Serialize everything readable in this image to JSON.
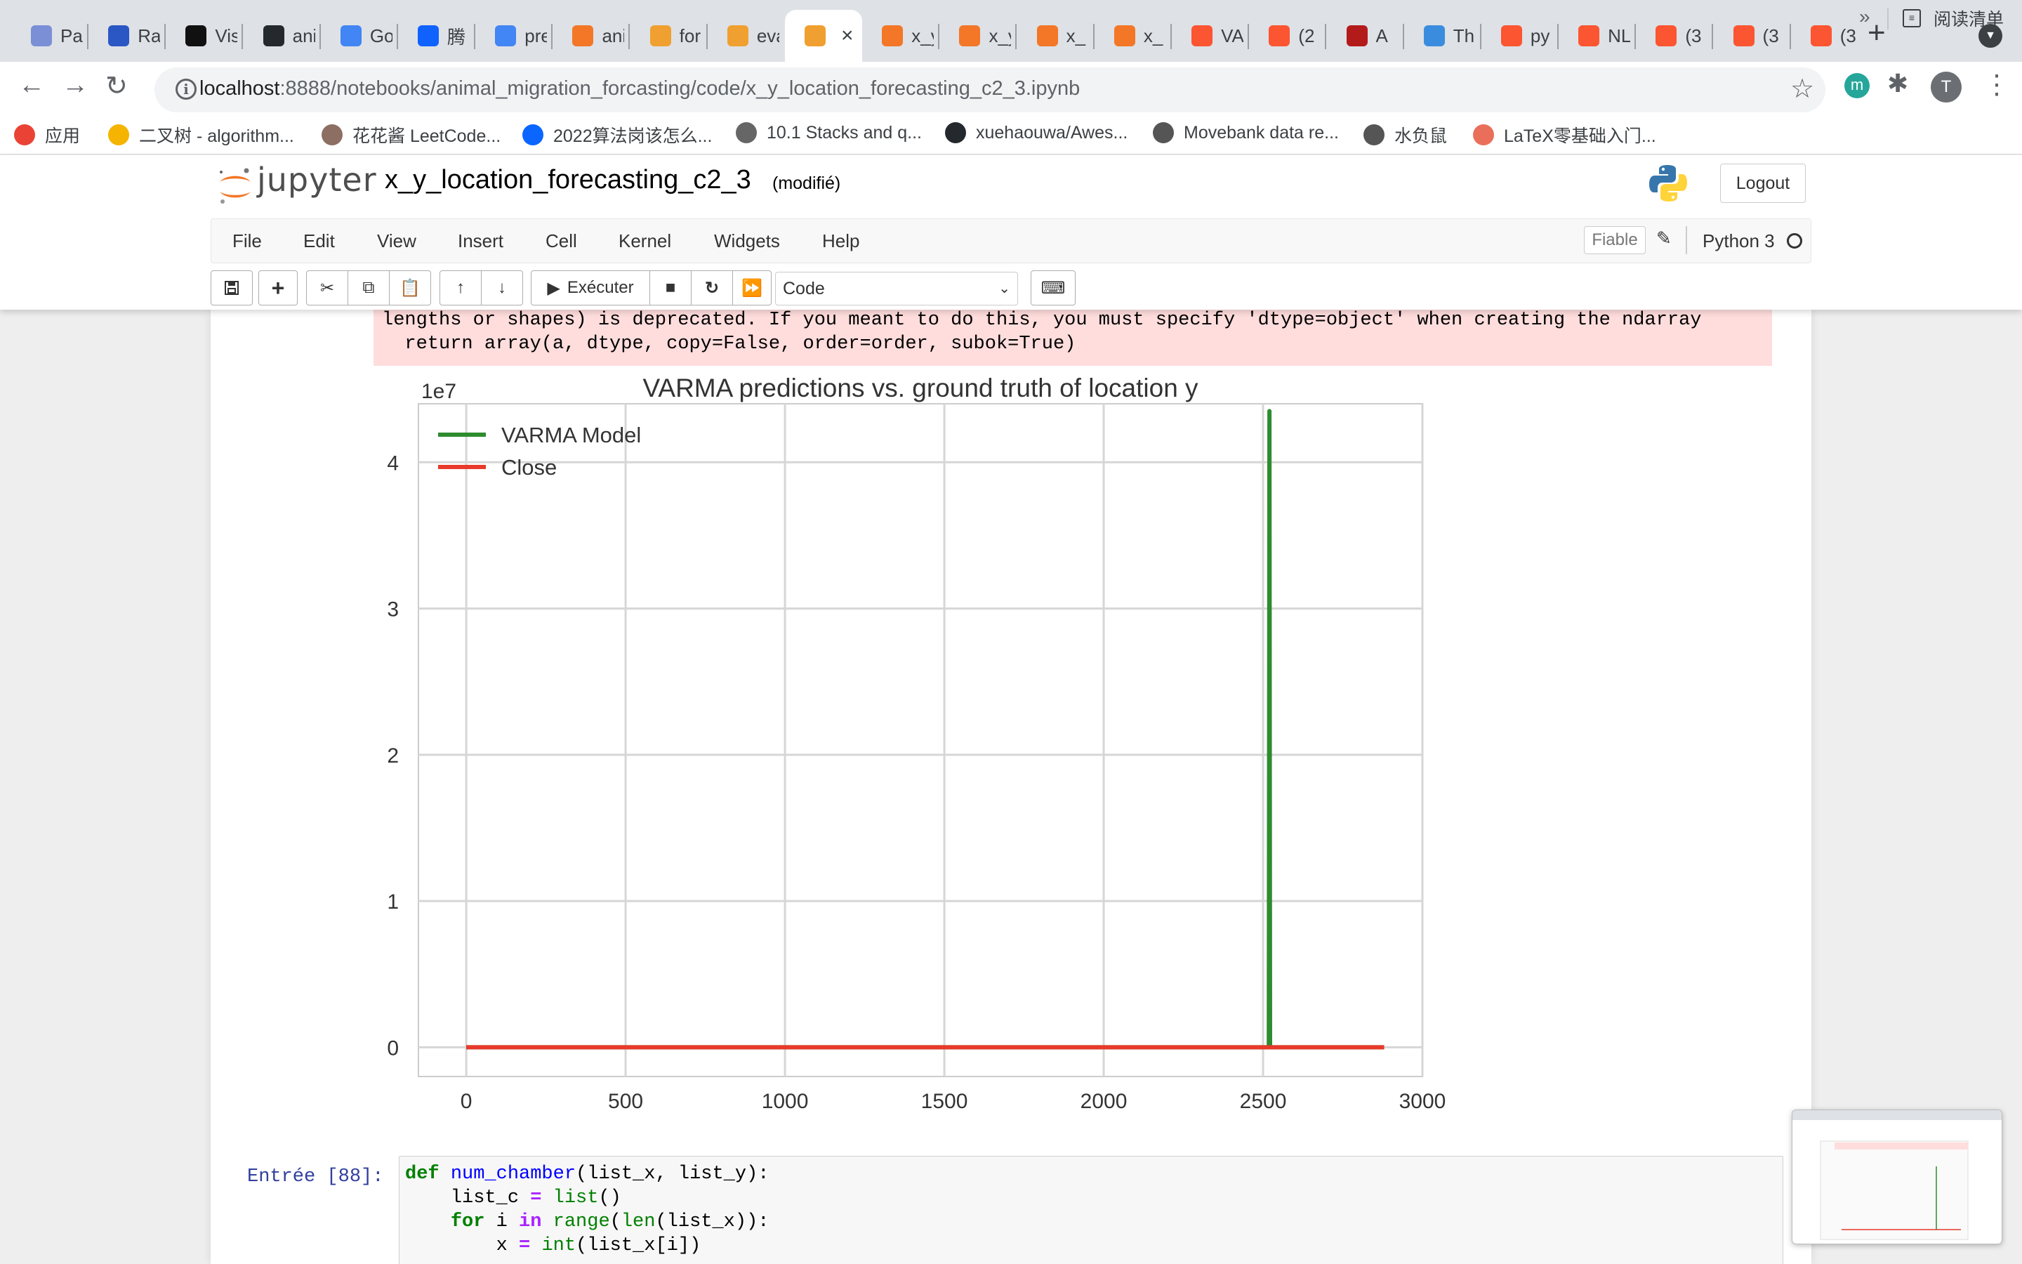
{
  "browser": {
    "tabs": [
      {
        "label": "Pa",
        "icon": "paper-icon",
        "color": "#7b8fd6"
      },
      {
        "label": "Ra",
        "icon": "nasa-icon",
        "color": "#2b57c5"
      },
      {
        "label": "Vis",
        "icon": "vis-icon",
        "color": "#111111"
      },
      {
        "label": "ani",
        "icon": "github-icon",
        "color": "#24292e"
      },
      {
        "label": "Go",
        "icon": "translate-icon",
        "color": "#4285f4"
      },
      {
        "label": "腾",
        "icon": "tencent-icon",
        "color": "#0f62fe"
      },
      {
        "label": "pre",
        "icon": "docs-icon",
        "color": "#4285f4"
      },
      {
        "label": "ani",
        "icon": "jupyter-icon",
        "color": "#f37726"
      },
      {
        "label": "for",
        "icon": "book-icon",
        "color": "#f0a030"
      },
      {
        "label": "eva",
        "icon": "book-icon",
        "color": "#f0a030"
      },
      {
        "label": "",
        "icon": "book-icon",
        "color": "#f0a030"
      },
      {
        "label": "x_y",
        "icon": "hourglass-icon",
        "color": "#f37726"
      },
      {
        "label": "x_y",
        "icon": "hourglass-icon",
        "color": "#f37726"
      },
      {
        "label": "x_",
        "icon": "hourglass-icon",
        "color": "#f37726"
      },
      {
        "label": "x_",
        "icon": "hourglass-icon",
        "color": "#f37726"
      },
      {
        "label": "VA",
        "icon": "csdn-icon",
        "color": "#fc5531"
      },
      {
        "label": "(2",
        "icon": "csdn-icon",
        "color": "#fc5531"
      },
      {
        "label": "A",
        "icon": "scholar-icon",
        "color": "#b31b1b"
      },
      {
        "label": "Th",
        "icon": "globe-icon",
        "color": "#3a8dde"
      },
      {
        "label": "py",
        "icon": "csdn-icon",
        "color": "#fc5531"
      },
      {
        "label": "NL",
        "icon": "csdn-icon",
        "color": "#fc5531"
      },
      {
        "label": "(3",
        "icon": "csdn-icon",
        "color": "#fc5531"
      },
      {
        "label": "(3",
        "icon": "csdn-icon",
        "color": "#fc5531"
      },
      {
        "label": "(3",
        "icon": "csdn-icon",
        "color": "#fc5531"
      }
    ],
    "url_host": "localhost",
    "url_path": ":8888/notebooks/animal_migration_forcasting/code/x_y_location_forecasting_c2_3.ipynb",
    "bookmarks": [
      {
        "label": "应用",
        "icon": "apps-grid-icon",
        "color": "#ea4335"
      },
      {
        "label": "二叉树 - algorithm...",
        "icon": "emoji-icon",
        "color": "#f5b400"
      },
      {
        "label": "花花酱 LeetCode...",
        "icon": "avatar-icon",
        "color": "#8d6e63"
      },
      {
        "label": "2022算法岗该怎么...",
        "icon": "zhihu-icon",
        "color": "#0a66ff"
      },
      {
        "label": "10.1 Stacks and q...",
        "icon": "w-icon",
        "color": "#666666"
      },
      {
        "label": "xuehaouwa/Awes...",
        "icon": "github-icon",
        "color": "#24292e"
      },
      {
        "label": "Movebank data re...",
        "icon": "paw-icon",
        "color": "#555555"
      },
      {
        "label": "水负鼠",
        "icon": "paw-icon",
        "color": "#555555"
      },
      {
        "label": "LaTeX零基础入门...",
        "icon": "jian-icon",
        "color": "#ea6f5a"
      }
    ],
    "bookmarks_more": "»",
    "reading_list": "阅读清单"
  },
  "jupyter": {
    "logo_text": "jupyter",
    "notebook_name": "x_y_location_forecasting_c2_3",
    "status": "(modifié)",
    "logout": "Logout",
    "menu": [
      "File",
      "Edit",
      "View",
      "Insert",
      "Cell",
      "Kernel",
      "Widgets",
      "Help"
    ],
    "trusted": "Fiable",
    "kernel": "Python 3",
    "run_label": "Exécuter",
    "cell_type": "Code"
  },
  "output": {
    "stderr_lines": [
      "lengths or shapes) is deprecated. If you meant to do this, you must specify 'dtype=object' when creating the ndarray",
      "  return array(a, dtype, copy=False, order=order, subok=True)"
    ]
  },
  "chart_data": {
    "type": "line",
    "title": "VARMA predictions vs. ground truth of location y",
    "xlabel": "",
    "ylabel": "",
    "y_offset_label": "1e7",
    "xlim": [
      -150,
      3000
    ],
    "ylim": [
      -0.2,
      4.4
    ],
    "x_ticks": [
      0,
      500,
      1000,
      1500,
      2000,
      2500,
      3000
    ],
    "y_ticks": [
      0,
      1,
      2,
      3,
      4
    ],
    "grid": true,
    "legend_position": "top-left",
    "series": [
      {
        "name": "VARMA Model",
        "color": "#2e8b2e",
        "points": [
          [
            0,
            0
          ],
          [
            2518,
            0
          ],
          [
            2520,
            4.35
          ],
          [
            2522,
            0
          ],
          [
            2880,
            0
          ]
        ]
      },
      {
        "name": "Close",
        "color": "#e8392a",
        "points": [
          [
            0,
            0
          ],
          [
            2880,
            0
          ]
        ]
      }
    ]
  },
  "next_cell": {
    "prompt": "Entrée [88]:",
    "lines": [
      "def num_chamber(list_x, list_y):",
      "    list_c = list()",
      "    for i in range(len(list_x)):",
      "        x = int(list_x[i])"
    ]
  }
}
